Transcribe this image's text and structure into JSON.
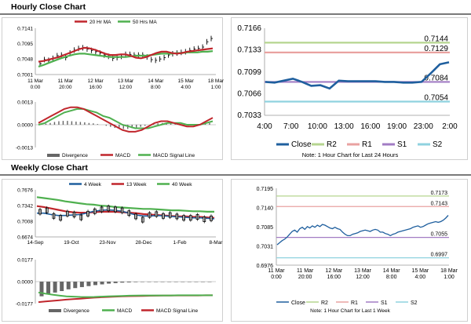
{
  "hourly_section": {
    "title": "Hourly Close Chart"
  },
  "weekly_section": {
    "title": "Weekly Close Chart"
  },
  "colors": {
    "close": "#1f5f9e",
    "ma1": "#c0262c",
    "ma2": "#4fb04f",
    "price_bar": "#000000",
    "r2": "#b5d58f",
    "r1": "#e9a2a0",
    "s1": "#a27cc4",
    "s2": "#8fd2df",
    "divergence": "#666666",
    "macd": "#c0262c",
    "signal": "#4fb04f"
  },
  "chart_data": [
    {
      "id": "hourly_price",
      "type": "line",
      "legend_position": "top",
      "legend": [
        "20 Hr MA",
        "50 Hrs MA"
      ],
      "x_ticks": [
        "11 Mar\n0:00",
        "11 Mar\n20:00",
        "12 Mar\n16:00",
        "13 Mar\n12:00",
        "14 Mar\n8:00",
        "15 Mar\n4:00",
        "18 Mar\n1:00"
      ],
      "y_ticks": [
        "0.7141",
        "0.7095",
        "0.7048",
        "0.7001"
      ],
      "ylim": [
        0.7001,
        0.7141
      ],
      "series": [
        {
          "name": "Price",
          "style": "bars",
          "values": [
            0.7034,
            0.7046,
            0.7044,
            0.705,
            0.7058,
            0.706,
            0.7052,
            0.7066,
            0.7075,
            0.708,
            0.7082,
            0.7078,
            0.7074,
            0.707,
            0.7066,
            0.706,
            0.7056,
            0.705,
            0.7052,
            0.7056,
            0.7062,
            0.7062,
            0.706,
            0.706,
            0.706,
            0.7054,
            0.7046,
            0.7044,
            0.7048,
            0.7052,
            0.706,
            0.7064,
            0.7066,
            0.7068,
            0.707,
            0.7074,
            0.7078,
            0.708,
            0.7084,
            0.71,
            0.711
          ]
        },
        {
          "name": "20 Hr MA",
          "color_key": "ma1",
          "values": [
            0.704,
            0.7042,
            0.7046,
            0.705,
            0.7054,
            0.706,
            0.7066,
            0.7072,
            0.7078,
            0.7082,
            0.708,
            0.7076,
            0.707,
            0.7064,
            0.706,
            0.706,
            0.7062,
            0.7062,
            0.7058,
            0.7052,
            0.705,
            0.7054,
            0.706,
            0.7066,
            0.707,
            0.707,
            0.7066,
            0.7064,
            0.7066,
            0.707,
            0.7072,
            0.7074,
            0.7076,
            0.7078,
            0.708
          ]
        },
        {
          "name": "50 Hrs MA",
          "color_key": "ma2",
          "values": [
            0.7025,
            0.703,
            0.7036,
            0.7042,
            0.7048,
            0.7053,
            0.7058,
            0.7062,
            0.7064,
            0.7064,
            0.7062,
            0.706,
            0.7058,
            0.7056,
            0.7054,
            0.7054,
            0.7054,
            0.7054,
            0.7056,
            0.7058,
            0.7058,
            0.7058,
            0.706,
            0.7062,
            0.7064,
            0.7064,
            0.7064,
            0.7066,
            0.7066,
            0.7068,
            0.7068,
            0.7068,
            0.707,
            0.707,
            0.7072
          ]
        }
      ]
    },
    {
      "id": "hourly_macd",
      "type": "line",
      "legend_position": "bottom",
      "legend": [
        "Divergence",
        "MACD",
        "MACD Signal Line"
      ],
      "y_ticks": [
        "0.0013",
        "0.0000",
        "-0.0013"
      ],
      "ylim": [
        -0.0013,
        0.0013
      ],
      "series": [
        {
          "name": "Divergence",
          "style": "bars",
          "values": [
            2e-05,
            6e-05,
            0.0001,
            0.00016,
            0.0002,
            0.00022,
            0.00022,
            0.0002,
            0.00018,
            0.00016,
            0.00014,
            0.0001,
            8e-05,
            4e-05,
            0.0,
            -6e-05,
            -0.00012,
            -0.00018,
            -0.00022,
            -0.00024,
            -0.00024,
            -0.0002,
            -0.00016,
            -0.00012,
            -6e-05,
            0.0,
            4e-05,
            8e-05,
            0.0001,
            0.0001,
            8e-05,
            4e-05,
            0.0,
            -4e-05,
            -6e-05,
            -4e-05,
            0.0,
            4e-05,
            8e-05,
            0.0001
          ]
        },
        {
          "name": "MACD",
          "color_key": "macd",
          "values": [
            0.0001,
            0.0003,
            0.0005,
            0.0007,
            0.0009,
            0.001,
            0.001,
            0.0009,
            0.0007,
            0.0005,
            0.0003,
            0.0001,
            -0.0001,
            -0.0003,
            -0.0004,
            -0.0004,
            -0.0003,
            -0.0001,
            0.0001,
            0.0002,
            0.0002,
            0.0001,
            0.0,
            -0.0001,
            -0.0001,
            0.0,
            0.0002,
            0.0004
          ]
        },
        {
          "name": "MACD Signal Line",
          "color_key": "signal",
          "values": [
            0.0,
            0.0001,
            0.0003,
            0.0005,
            0.0007,
            0.0008,
            0.0009,
            0.0009,
            0.0008,
            0.0007,
            0.0005,
            0.0004,
            0.0002,
            0.0,
            -0.0001,
            -0.0002,
            -0.0002,
            -0.0002,
            -0.0001,
            0.0,
            0.0001,
            0.0001,
            0.0001,
            0.0,
            0.0,
            0.0,
            0.0001,
            0.0002
          ]
        }
      ]
    },
    {
      "id": "hourly_close_24h",
      "type": "line",
      "x_ticks": [
        "4:00",
        "7:00",
        "10:00",
        "13:00",
        "16:00",
        "19:00",
        "23:00",
        "2:00"
      ],
      "y_ticks": [
        "0.7166",
        "0.7133",
        "0.7099",
        "0.7066",
        "0.7033"
      ],
      "ylim": [
        0.7033,
        0.7166
      ],
      "levels": [
        {
          "name": "R2",
          "value": 0.7144,
          "label": "0.7144",
          "color_key": "r2"
        },
        {
          "name": "R1",
          "value": 0.7129,
          "label": "0.7129",
          "color_key": "r1"
        },
        {
          "name": "S1",
          "value": 0.7084,
          "label": "0.7084",
          "color_key": "s1"
        },
        {
          "name": "S2",
          "value": 0.7054,
          "label": "0.7054",
          "color_key": "s2"
        }
      ],
      "series": [
        {
          "name": "Close",
          "color_key": "close",
          "values": [
            0.7084,
            0.7083,
            0.7086,
            0.7089,
            0.7084,
            0.7078,
            0.7079,
            0.7074,
            0.7086,
            0.7085,
            0.7085,
            0.7085,
            0.7085,
            0.7084,
            0.7084,
            0.7083,
            0.7083,
            0.7084,
            0.7097,
            0.7111,
            0.7114
          ]
        }
      ],
      "legend": [
        "Close",
        "R2",
        "R1",
        "S1",
        "S2"
      ],
      "legend_position": "bottom",
      "note": "Note: 1 Hour Chart for Last 24 Hours"
    },
    {
      "id": "weekly_price",
      "type": "line",
      "legend_position": "top",
      "legend": [
        "4 Week",
        "13 Week",
        "40 Week"
      ],
      "x_ticks": [
        "14-Sep",
        "19-Oct",
        "23-Nov",
        "28-Dec",
        "1-Feb",
        "8-Mar"
      ],
      "y_ticks": [
        "0.7676",
        "0.7342",
        "0.7008",
        "0.6674"
      ],
      "ylim": [
        0.6674,
        0.7676
      ],
      "series": [
        {
          "name": "Price",
          "style": "bars",
          "values": [
            0.721,
            0.724,
            0.712,
            0.708,
            0.717,
            0.715,
            0.709,
            0.717,
            0.722,
            0.726,
            0.728,
            0.726,
            0.724,
            0.718,
            0.711,
            0.704,
            0.714,
            0.716,
            0.712,
            0.714,
            0.711,
            0.708,
            0.708,
            0.71,
            0.705,
            0.707
          ]
        },
        {
          "name": "4 Week",
          "color_key": "close",
          "values": [
            0.718,
            0.718,
            0.715,
            0.713,
            0.713,
            0.714,
            0.715,
            0.718,
            0.722,
            0.724,
            0.725,
            0.724,
            0.722,
            0.718,
            0.714,
            0.712,
            0.712,
            0.713,
            0.712,
            0.711,
            0.71,
            0.709,
            0.708,
            0.708,
            0.707,
            0.706
          ]
        },
        {
          "name": "13 Week",
          "color_key": "ma1",
          "values": [
            0.733,
            0.731,
            0.728,
            0.725,
            0.722,
            0.72,
            0.719,
            0.719,
            0.72,
            0.721,
            0.721,
            0.721,
            0.72,
            0.719,
            0.718,
            0.716,
            0.715,
            0.714,
            0.713,
            0.712,
            0.711,
            0.711,
            0.71,
            0.71,
            0.709,
            0.708
          ]
        },
        {
          "name": "40 Week",
          "color_key": "signal",
          "values": [
            0.752,
            0.75,
            0.748,
            0.746,
            0.743,
            0.741,
            0.739,
            0.737,
            0.736,
            0.734,
            0.733,
            0.731,
            0.73,
            0.729,
            0.728,
            0.727,
            0.727,
            0.726,
            0.725,
            0.724,
            0.724,
            0.723,
            0.722,
            0.722,
            0.721,
            0.721
          ]
        }
      ]
    },
    {
      "id": "weekly_macd",
      "type": "line",
      "legend_position": "bottom",
      "legend": [
        "Divergence",
        "MACD",
        "MACD Signal Line"
      ],
      "y_ticks": [
        "0.0177",
        "0.0000",
        "-0.0177"
      ],
      "ylim": [
        -0.0177,
        0.0177
      ],
      "series": [
        {
          "name": "Divergence",
          "style": "bars",
          "values": [
            -0.0118,
            -0.0102,
            -0.0088,
            -0.0076,
            -0.0062,
            -0.0052,
            -0.0044,
            -0.0036,
            -0.0028,
            -0.0022,
            -0.0016,
            -0.0012,
            -0.0008,
            -0.0006,
            -0.0004,
            -0.0003,
            -0.0002,
            -0.0002,
            -0.0001,
            -0.0001,
            -0.0001,
            -0.0001,
            -0.0001,
            -0.0001,
            -0.0001,
            -0.0001
          ]
        },
        {
          "name": "MACD",
          "color_key": "signal",
          "values": [
            -0.0087,
            -0.0097,
            -0.0105,
            -0.0112,
            -0.0118,
            -0.0121,
            -0.0123,
            -0.0124,
            -0.0123,
            -0.0121,
            -0.0119,
            -0.0117,
            -0.0115,
            -0.0113,
            -0.0112,
            -0.0111,
            -0.0111,
            -0.0111,
            -0.0111,
            -0.0111,
            -0.011,
            -0.011,
            -0.011,
            -0.011,
            -0.011,
            -0.011
          ]
        },
        {
          "name": "MACD Signal Line",
          "color_key": "ma1",
          "values": [
            -0.0165,
            -0.016,
            -0.0155,
            -0.015,
            -0.0145,
            -0.0141,
            -0.0137,
            -0.0133,
            -0.0129,
            -0.0126,
            -0.0123,
            -0.0121,
            -0.0119,
            -0.0117,
            -0.0116,
            -0.0115,
            -0.0114,
            -0.0113,
            -0.0112,
            -0.0112,
            -0.0111,
            -0.0111,
            -0.0111,
            -0.0111,
            -0.011,
            -0.011
          ]
        }
      ]
    },
    {
      "id": "weekly_close_1w",
      "type": "line",
      "x_ticks": [
        "11 Mar\n0:00",
        "11 Mar\n20:00",
        "12 Mar\n16:00",
        "13 Mar\n12:00",
        "14 Mar\n8:00",
        "15 Mar\n4:00",
        "18 Mar\n1:00"
      ],
      "y_ticks": [
        "0.7195",
        "0.7140",
        "0.7085",
        "0.7031",
        "0.6976"
      ],
      "ylim": [
        0.6976,
        0.7195
      ],
      "levels": [
        {
          "name": "R2",
          "value": 0.7173,
          "label": "0.7173",
          "color_key": "r2"
        },
        {
          "name": "R1",
          "value": 0.7143,
          "label": "0.7143",
          "color_key": "r1"
        },
        {
          "name": "S1",
          "value": 0.7055,
          "label": "0.7055",
          "color_key": "s1"
        },
        {
          "name": "S2",
          "value": 0.6997,
          "label": "0.6997",
          "color_key": "s2"
        }
      ],
      "series": [
        {
          "name": "Close",
          "color_key": "close",
          "values": [
            0.7034,
            0.704,
            0.7046,
            0.705,
            0.7056,
            0.7064,
            0.7072,
            0.7076,
            0.707,
            0.708,
            0.7084,
            0.7078,
            0.7086,
            0.7082,
            0.7088,
            0.7084,
            0.709,
            0.7086,
            0.7092,
            0.709,
            0.7086,
            0.7082,
            0.708,
            0.7084,
            0.708,
            0.7078,
            0.707,
            0.7064,
            0.706,
            0.706,
            0.7064,
            0.7066,
            0.7068,
            0.7072,
            0.7074,
            0.7076,
            0.7074,
            0.7072,
            0.7076,
            0.7078,
            0.7076,
            0.707,
            0.707,
            0.7066,
            0.7064,
            0.706,
            0.7064,
            0.7066,
            0.707,
            0.7072,
            0.7074,
            0.7076,
            0.7078,
            0.708,
            0.7084,
            0.7086,
            0.7088,
            0.7084,
            0.7086,
            0.709,
            0.7094,
            0.7096,
            0.7098,
            0.71,
            0.7098,
            0.71,
            0.7104,
            0.711,
            0.7118
          ]
        }
      ],
      "legend": [
        "Close",
        "R2",
        "R1",
        "S1",
        "S2"
      ],
      "legend_position": "bottom",
      "note": "Note: 1 Hour Chart for Last 1 Week"
    }
  ]
}
